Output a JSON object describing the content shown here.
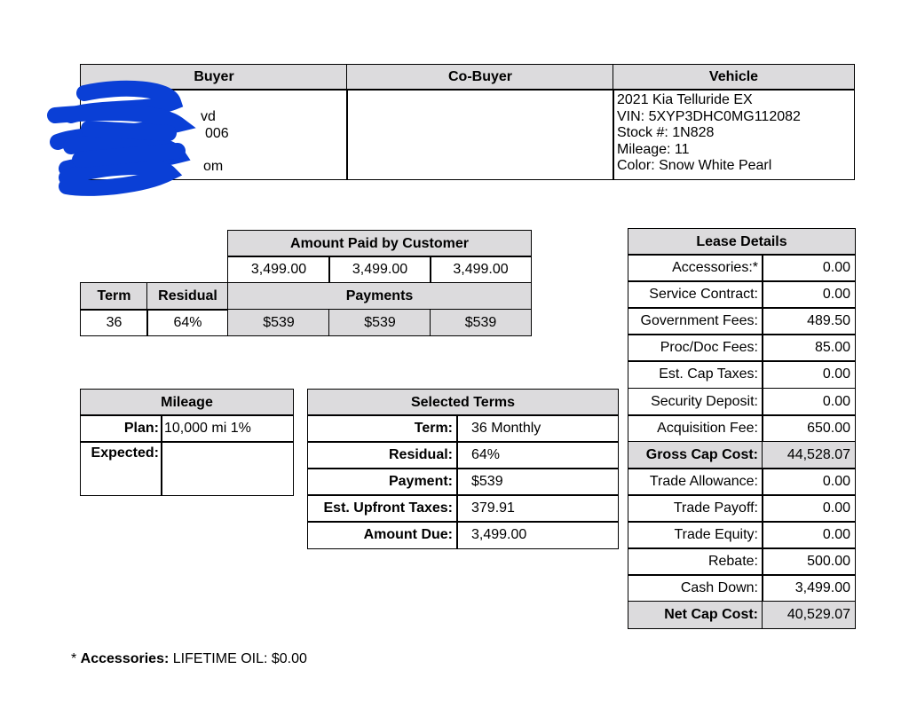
{
  "parties": {
    "headers": [
      "Buyer",
      "Co-Buyer",
      "Vehicle"
    ],
    "buyer_visible_fragments": [
      "vd",
      "006",
      "om"
    ],
    "vehicle": [
      "2021 Kia Telluride EX",
      "VIN: 5XYP3DHC0MG112082",
      "Stock #: 1N828",
      "Mileage: 11",
      "Color: Snow White Pearl"
    ]
  },
  "amount_paid": {
    "header": "Amount Paid by Customer",
    "values": [
      "3,499.00",
      "3,499.00",
      "3,499.00"
    ],
    "term_label": "Term",
    "residual_label": "Residual",
    "payments_label": "Payments",
    "term": "36",
    "residual": "64%",
    "payments": [
      "$539",
      "$539",
      "$539"
    ]
  },
  "mileage": {
    "header": "Mileage",
    "plan_label": "Plan:",
    "plan": "10,000 mi 1%",
    "expected_label": "Expected:",
    "expected": ""
  },
  "selected_terms": {
    "header": "Selected Terms",
    "rows": [
      {
        "label": "Term:",
        "value": "36 Monthly"
      },
      {
        "label": "Residual:",
        "value": "64%"
      },
      {
        "label": "Payment:",
        "value": "$539"
      },
      {
        "label": "Est. Upfront Taxes:",
        "value": "379.91"
      },
      {
        "label": "Amount Due:",
        "value": "3,499.00"
      }
    ]
  },
  "lease_details": {
    "header": "Lease Details",
    "rows": [
      {
        "label": "Accessories:*",
        "value": "0.00"
      },
      {
        "label": "Service Contract:",
        "value": "0.00"
      },
      {
        "label": "Government Fees:",
        "value": "489.50"
      },
      {
        "label": "Proc/Doc Fees:",
        "value": "85.00"
      },
      {
        "label": "Est. Cap Taxes:",
        "value": "0.00"
      },
      {
        "label": "Security Deposit:",
        "value": "0.00"
      },
      {
        "label": "Acquisition Fee:",
        "value": "650.00"
      },
      {
        "label": "Gross Cap Cost:",
        "value": "44,528.07",
        "highlight": true
      },
      {
        "label": "Trade Allowance:",
        "value": "0.00"
      },
      {
        "label": "Trade Payoff:",
        "value": "0.00"
      },
      {
        "label": "Trade Equity:",
        "value": "0.00"
      },
      {
        "label": "Rebate:",
        "value": "500.00"
      },
      {
        "label": "Cash Down:",
        "value": "3,499.00"
      },
      {
        "label": "Net Cap Cost:",
        "value": "40,529.07",
        "highlight": true
      }
    ]
  },
  "footnote": {
    "star": "* ",
    "label": "Accessories:",
    "text": " LIFETIME OIL: $0.00"
  },
  "colors": {
    "header_bg": "#dcdbdd",
    "redaction": "#0a3fd6"
  }
}
